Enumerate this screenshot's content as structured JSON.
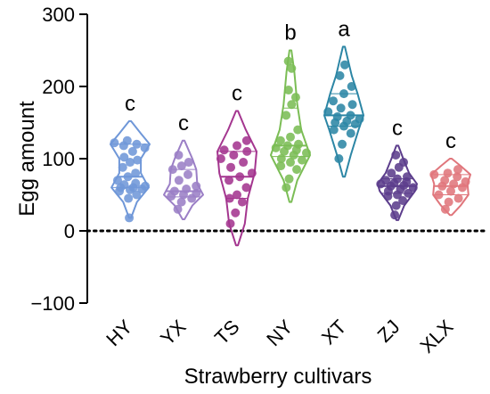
{
  "chart_data": {
    "type": "violin",
    "xlabel": "Strawberry cultivars",
    "ylabel": "Egg amount",
    "ylim": [
      -100,
      300
    ],
    "yticks": [
      -100,
      0,
      100,
      200,
      300
    ],
    "ytick_labels": [
      "−100",
      "0",
      "100",
      "200",
      "300"
    ],
    "reference_line": {
      "y": 0,
      "style": "dotted"
    },
    "categories": [
      "HY",
      "YX",
      "TS",
      "NY",
      "XT",
      "ZJ",
      "XLX"
    ],
    "groups": [
      {
        "name": "HY",
        "letter": "c",
        "color": "#6f97d8",
        "min": 18,
        "max": 152,
        "q1": 60,
        "median": 75,
        "q3": 120,
        "profile": [
          [
            18,
            0.05
          ],
          [
            40,
            0.35
          ],
          [
            60,
            0.95
          ],
          [
            80,
            0.55
          ],
          [
            100,
            0.55
          ],
          [
            120,
            1.0
          ],
          [
            135,
            0.55
          ],
          [
            152,
            0.05
          ]
        ],
        "points": [
          18,
          45,
          50,
          55,
          57,
          58,
          60,
          60,
          62,
          64,
          66,
          70,
          75,
          80,
          88,
          95,
          98,
          102,
          110,
          115,
          118,
          120,
          122,
          125
        ]
      },
      {
        "name": "YX",
        "letter": "c",
        "color": "#9b7fc6",
        "min": 16,
        "max": 125,
        "q1": 47,
        "median": 55,
        "q3": 85,
        "profile": [
          [
            16,
            0.05
          ],
          [
            35,
            0.45
          ],
          [
            50,
            1.0
          ],
          [
            65,
            0.7
          ],
          [
            85,
            0.65
          ],
          [
            100,
            0.45
          ],
          [
            125,
            0.05
          ]
        ],
        "points": [
          30,
          40,
          45,
          48,
          50,
          52,
          55,
          58,
          62,
          70,
          78,
          85,
          90,
          95,
          105
        ]
      },
      {
        "name": "TS",
        "letter": "c",
        "color": "#a4368f",
        "min": -20,
        "max": 166,
        "q1": 45,
        "median": 75,
        "q3": 110,
        "profile": [
          [
            -20,
            0.05
          ],
          [
            10,
            0.4
          ],
          [
            45,
            0.55
          ],
          [
            80,
            0.9
          ],
          [
            110,
            1.0
          ],
          [
            140,
            0.45
          ],
          [
            166,
            0.05
          ]
        ],
        "points": [
          10,
          25,
          40,
          45,
          50,
          60,
          70,
          75,
          80,
          88,
          95,
          100,
          105,
          110,
          112,
          118,
          125
        ]
      },
      {
        "name": "NY",
        "letter": "b",
        "color": "#7bbd55",
        "min": 40,
        "max": 250,
        "q1": 103,
        "median": 118,
        "q3": 170,
        "profile": [
          [
            40,
            0.05
          ],
          [
            70,
            0.35
          ],
          [
            105,
            1.0
          ],
          [
            140,
            0.55
          ],
          [
            175,
            0.35
          ],
          [
            220,
            0.2
          ],
          [
            250,
            0.05
          ]
        ],
        "points": [
          60,
          72,
          85,
          90,
          95,
          98,
          100,
          105,
          108,
          110,
          112,
          115,
          118,
          120,
          125,
          130,
          140,
          160,
          175,
          185,
          195,
          225,
          235
        ]
      },
      {
        "name": "XT",
        "letter": "a",
        "color": "#2c86a5",
        "min": 75,
        "max": 255,
        "q1": 145,
        "median": 160,
        "q3": 190,
        "profile": [
          [
            75,
            0.05
          ],
          [
            105,
            0.35
          ],
          [
            140,
            0.75
          ],
          [
            160,
            1.0
          ],
          [
            190,
            0.7
          ],
          [
            215,
            0.4
          ],
          [
            255,
            0.05
          ]
        ],
        "points": [
          100,
          120,
          135,
          140,
          145,
          148,
          150,
          152,
          155,
          158,
          160,
          165,
          170,
          175,
          180,
          190,
          200,
          215,
          230
        ]
      },
      {
        "name": "ZJ",
        "letter": "c",
        "color": "#5c3d8c",
        "min": 15,
        "max": 118,
        "q1": 52,
        "median": 62,
        "q3": 72,
        "profile": [
          [
            15,
            0.05
          ],
          [
            35,
            0.35
          ],
          [
            55,
            0.9
          ],
          [
            65,
            1.0
          ],
          [
            80,
            0.6
          ],
          [
            100,
            0.3
          ],
          [
            118,
            0.05
          ]
        ],
        "points": [
          22,
          35,
          42,
          48,
          50,
          52,
          55,
          58,
          60,
          62,
          63,
          65,
          66,
          68,
          70,
          72,
          75,
          80,
          88,
          95,
          105
        ]
      },
      {
        "name": "XLX",
        "letter": "c",
        "color": "#e0767c",
        "min": 22,
        "max": 100,
        "q1": 50,
        "median": 62,
        "q3": 78,
        "profile": [
          [
            22,
            0.05
          ],
          [
            35,
            0.5
          ],
          [
            50,
            0.9
          ],
          [
            65,
            0.85
          ],
          [
            78,
            1.0
          ],
          [
            90,
            0.5
          ],
          [
            100,
            0.05
          ]
        ],
        "points": [
          30,
          40,
          45,
          50,
          55,
          60,
          62,
          65,
          68,
          70,
          75,
          78,
          80,
          85
        ]
      }
    ]
  }
}
